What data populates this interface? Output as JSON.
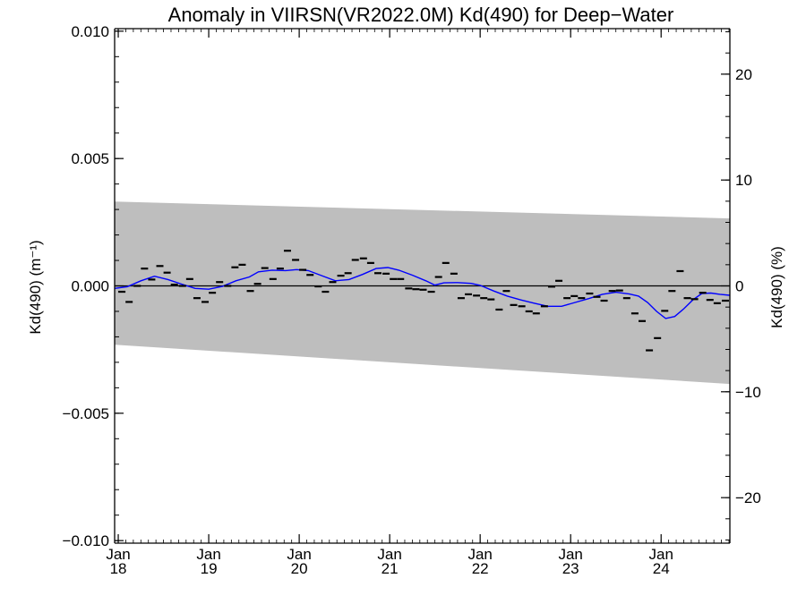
{
  "chart_data": {
    "type": "line",
    "title": "Anomaly in VIIRSN(VR2022.0M) Kd(490) for Deep−Water",
    "ylabel_left": "Kd(490) (m⁻¹)",
    "ylabel_right": "Kd(490) (%)",
    "xlim": [
      2017.96,
      2024.76
    ],
    "ylim_left": [
      -0.0101,
      0.0101
    ],
    "ylim_right": [
      -24.3,
      24.3
    ],
    "x_ticks": [
      {
        "value": 2018,
        "month": "Jan",
        "year": "18"
      },
      {
        "value": 2019,
        "month": "Jan",
        "year": "19"
      },
      {
        "value": 2020,
        "month": "Jan",
        "year": "20"
      },
      {
        "value": 2021,
        "month": "Jan",
        "year": "21"
      },
      {
        "value": 2022,
        "month": "Jan",
        "year": "22"
      },
      {
        "value": 2023,
        "month": "Jan",
        "year": "23"
      },
      {
        "value": 2024,
        "month": "Jan",
        "year": "24"
      }
    ],
    "y_ticks_left": [
      {
        "value": 0.01,
        "label": "0.010"
      },
      {
        "value": 0.005,
        "label": "0.005"
      },
      {
        "value": 0.0,
        "label": "0.000"
      },
      {
        "value": -0.005,
        "label": "−0.005"
      },
      {
        "value": -0.01,
        "label": "−0.010"
      }
    ],
    "y_ticks_right": [
      {
        "value": 20,
        "label": "20"
      },
      {
        "value": 10,
        "label": "10"
      },
      {
        "value": 0,
        "label": "0"
      },
      {
        "value": -10,
        "label": "−10"
      },
      {
        "value": -20,
        "label": "−20"
      }
    ],
    "uncertainty_band": {
      "x": [
        2017.96,
        2024.76
      ],
      "upper": [
        0.00331,
        0.00265
      ],
      "lower": [
        -0.00231,
        -0.00385
      ],
      "color": "#bebebe"
    },
    "zero_line": {
      "value": 0,
      "color": "#000000"
    },
    "series": [
      {
        "mark": "dash",
        "color": "#000000",
        "x": [
          2018.04,
          2018.12,
          2018.21,
          2018.29,
          2018.37,
          2018.46,
          2018.54,
          2018.62,
          2018.71,
          2018.79,
          2018.87,
          2018.96,
          2019.04,
          2019.12,
          2019.21,
          2019.29,
          2019.37,
          2019.46,
          2019.54,
          2019.62,
          2019.71,
          2019.79,
          2019.87,
          2019.96,
          2020.04,
          2020.12,
          2020.21,
          2020.29,
          2020.37,
          2020.46,
          2020.54,
          2020.62,
          2020.71,
          2020.79,
          2020.87,
          2020.96,
          2021.04,
          2021.12,
          2021.21,
          2021.29,
          2021.37,
          2021.46,
          2021.54,
          2021.62,
          2021.71,
          2021.79,
          2021.87,
          2021.96,
          2022.04,
          2022.12,
          2022.21,
          2022.29,
          2022.37,
          2022.46,
          2022.54,
          2022.62,
          2022.71,
          2022.79,
          2022.87,
          2022.96,
          2023.04,
          2023.12,
          2023.21,
          2023.29,
          2023.37,
          2023.46,
          2023.54,
          2023.62,
          2023.71,
          2023.79,
          2023.87,
          2023.96,
          2024.04,
          2024.12,
          2024.21,
          2024.29,
          2024.37,
          2024.46,
          2024.54,
          2024.62,
          2024.71
        ],
        "values": [
          -0.00023,
          -0.00063,
          0.0,
          0.00068,
          0.00025,
          0.00078,
          0.00052,
          5e-05,
          0.0,
          0.00027,
          -0.00048,
          -0.00063,
          -0.00027,
          0.00015,
          0.0,
          0.00073,
          0.00083,
          -0.0002,
          8e-05,
          0.0007,
          0.00027,
          0.00068,
          0.00138,
          0.00102,
          0.00063,
          0.00043,
          -2e-05,
          -0.00023,
          0.00015,
          0.0004,
          0.0005,
          0.00102,
          0.00108,
          0.0009,
          0.0005,
          0.00048,
          0.00027,
          0.00027,
          -0.0001,
          -0.00013,
          -0.00015,
          -0.00023,
          0.00035,
          0.0009,
          0.00048,
          -0.00048,
          -0.00033,
          -0.00038,
          -0.00048,
          -0.00053,
          -0.00093,
          -0.0002,
          -0.00075,
          -0.0008,
          -0.001,
          -0.00108,
          -0.0008,
          -3e-05,
          0.0002,
          -0.00048,
          -0.0004,
          -0.00048,
          -0.0003,
          -0.00043,
          -0.00058,
          -0.0002,
          -0.00018,
          -0.00048,
          -0.00108,
          -0.00138,
          -0.00253,
          -0.00205,
          -0.00098,
          -0.0002,
          0.00058,
          -0.00048,
          -0.00052,
          -0.00027,
          -0.00055,
          -0.00068,
          -0.00058
        ]
      },
      {
        "mark": "line",
        "color": "#0000ff",
        "x": [
          2017.96,
          2018.1,
          2018.25,
          2018.4,
          2018.55,
          2018.7,
          2018.85,
          2019.0,
          2019.15,
          2019.3,
          2019.45,
          2019.55,
          2019.7,
          2019.85,
          2019.97,
          2020.1,
          2020.25,
          2020.4,
          2020.55,
          2020.7,
          2020.85,
          2020.98,
          2021.1,
          2021.25,
          2021.4,
          2021.5,
          2021.6,
          2021.75,
          2021.9,
          2022.0,
          2022.15,
          2022.3,
          2022.45,
          2022.6,
          2022.75,
          2022.9,
          2023.05,
          2023.2,
          2023.35,
          2023.5,
          2023.65,
          2023.75,
          2023.85,
          2023.95,
          2024.05,
          2024.15,
          2024.25,
          2024.35,
          2024.45,
          2024.55,
          2024.65,
          2024.76
        ],
        "values": [
          -0.0001,
          -3e-05,
          0.0002,
          0.00038,
          0.00025,
          7e-05,
          -0.0001,
          -0.00013,
          -2e-05,
          0.0002,
          0.00035,
          0.00055,
          0.00062,
          0.0006,
          0.00064,
          0.0006,
          0.0004,
          0.0002,
          0.00025,
          0.00045,
          0.00068,
          0.00072,
          0.00062,
          0.00042,
          0.0002,
          3e-05,
          0.00012,
          0.00013,
          0.0001,
          2e-05,
          -0.0002,
          -0.0004,
          -0.00055,
          -0.00068,
          -0.0008,
          -0.0008,
          -0.00065,
          -0.0005,
          -0.00033,
          -0.00025,
          -0.00032,
          -0.0004,
          -0.00065,
          -0.001,
          -0.00128,
          -0.0012,
          -0.0009,
          -0.00055,
          -0.0003,
          -0.00028,
          -0.00033,
          -0.00037
        ]
      }
    ]
  }
}
